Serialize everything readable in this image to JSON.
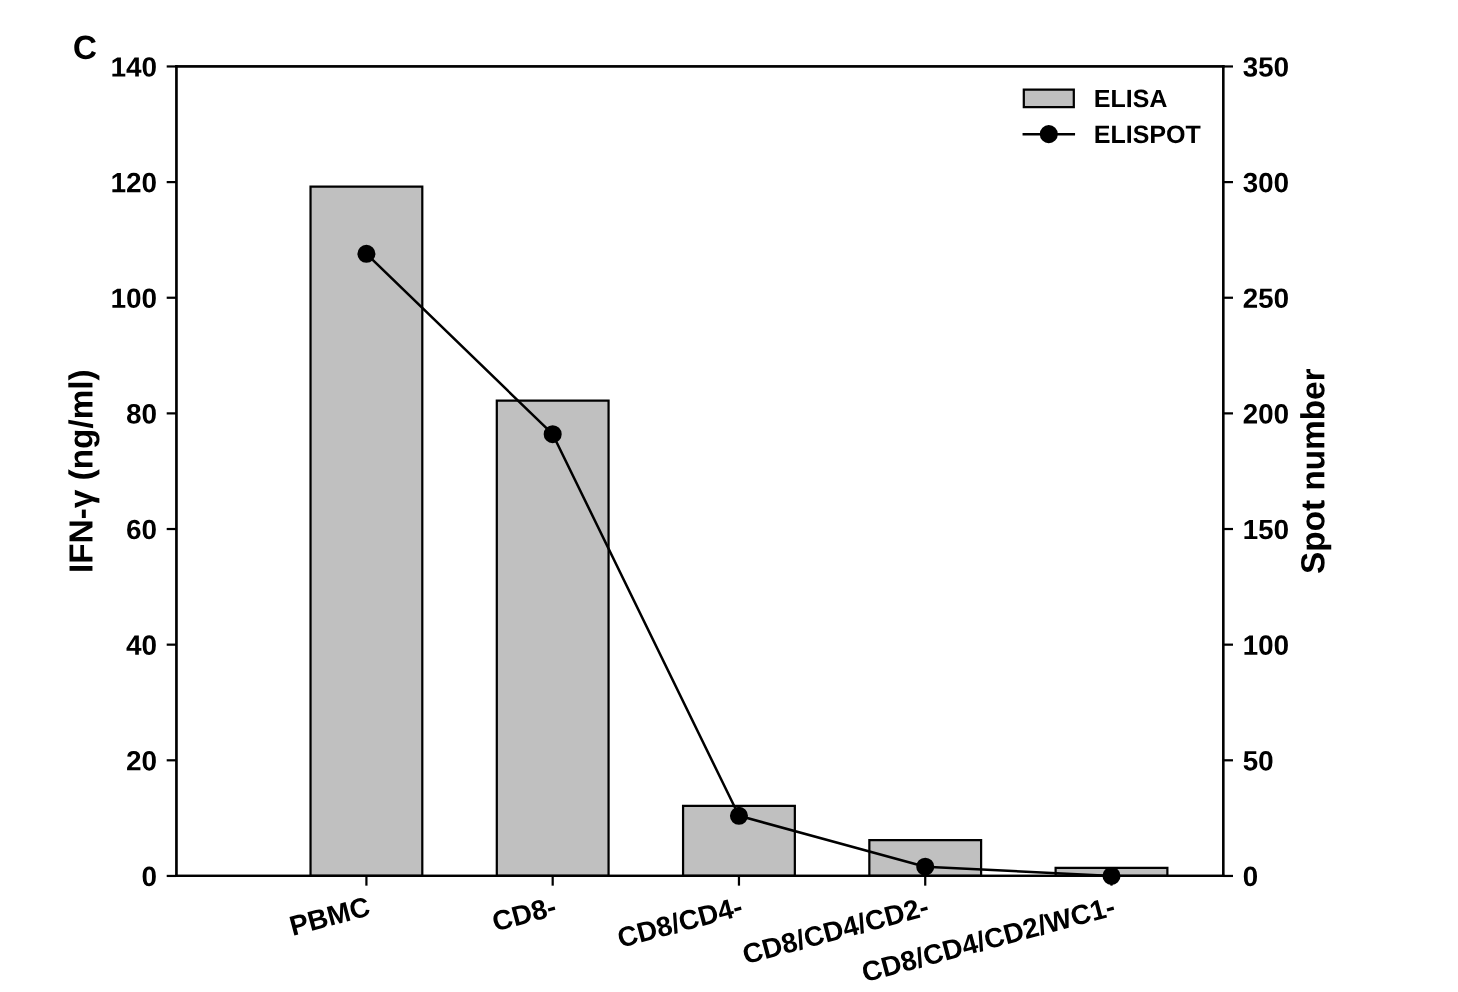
{
  "chart_data": {
    "type": "bar",
    "title": "C",
    "ylabel": "IFN-γ (ng/ml)",
    "y2label": "Spot number",
    "categories": [
      "PBMC",
      "CD8-",
      "CD8/CD4-",
      "CD8/CD4/CD2-",
      "CD8/CD4/CD2/WC1-"
    ],
    "series": [
      {
        "name": "ELISA",
        "color": "#c0c0c0",
        "values": [
          119.2,
          82.2,
          12.1,
          6.2,
          1.4
        ]
      },
      {
        "name": "ELISPOT",
        "type": "line",
        "axis": "y2",
        "color": "#000000",
        "marker": "circle",
        "values": [
          269,
          191,
          26,
          4,
          0
        ]
      }
    ],
    "ylim": [
      0,
      140
    ],
    "yticks": [
      0,
      20,
      40,
      60,
      80,
      100,
      120,
      140
    ],
    "y2lim": [
      0,
      350
    ],
    "y2ticks": [
      0,
      50,
      100,
      150,
      200,
      250,
      300,
      350
    ],
    "legend": "top right",
    "grid": false
  }
}
